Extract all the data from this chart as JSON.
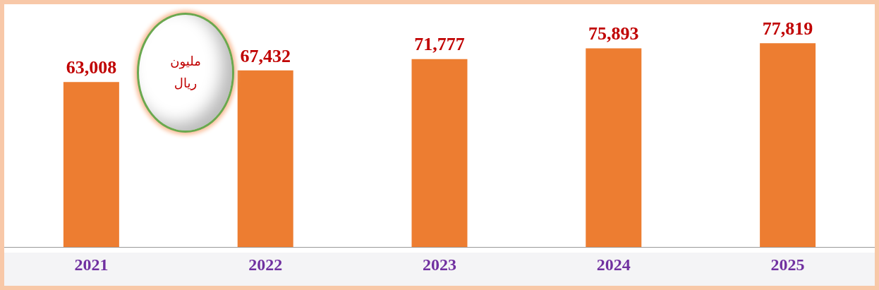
{
  "chart_data": {
    "type": "bar",
    "categories": [
      "2021",
      "2022",
      "2023",
      "2024",
      "2025"
    ],
    "values": [
      63008,
      67432,
      71777,
      75893,
      77819
    ],
    "value_labels": [
      "63,008",
      "67,432",
      "71,777",
      "75,893",
      "77,819"
    ],
    "color": "#ed7d31",
    "grid": false,
    "legend": false,
    "annotations": [
      "مليون ريال"
    ]
  }
}
